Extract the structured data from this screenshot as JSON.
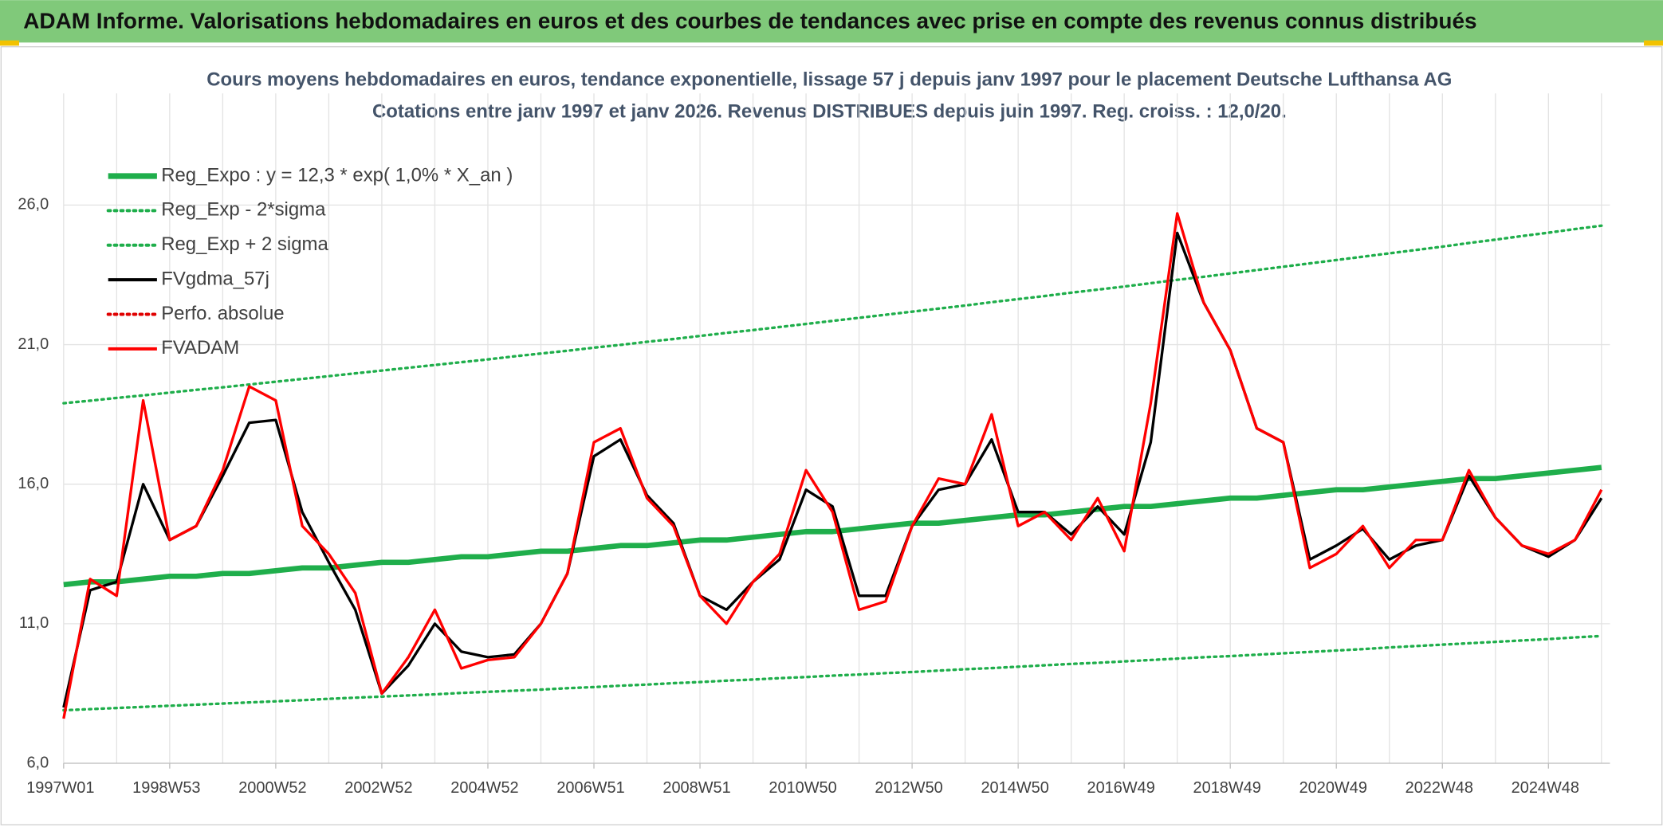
{
  "header": {
    "title": "ADAM Informe. Valorisations hebdomadaires en euros et des courbes de tendances avec prise en compte des revenus connus distribués"
  },
  "chart_data": {
    "type": "line",
    "title": "Cours moyens hebdomadaires en euros, tendance exponentielle, lissage 57 j depuis janv 1997 pour le placement Deutsche Lufthansa AG",
    "subtitle": "Cotations entre janv 1997 et janv 2026. Revenus DISTRIBUES depuis juin 1997. Reg. croiss. : 12,0/20.",
    "categories": [
      "1997W01",
      null,
      null,
      null,
      "1998W53",
      null,
      null,
      null,
      "2000W52",
      null,
      null,
      null,
      "2002W52",
      null,
      null,
      null,
      "2004W52",
      null,
      null,
      null,
      "2006W51",
      null,
      null,
      null,
      "2008W51",
      null,
      null,
      null,
      "2010W50",
      null,
      null,
      null,
      "2012W50",
      null,
      null,
      null,
      "2014W50",
      null,
      null,
      null,
      "2016W49",
      null,
      null,
      null,
      "2018W49",
      null,
      null,
      null,
      "2020W49",
      null,
      null,
      null,
      "2022W48",
      null,
      null,
      null,
      "2024W48",
      null,
      null
    ],
    "ylim": [
      6,
      30
    ],
    "yticks": [
      {
        "value": 6,
        "label": "6,0"
      },
      {
        "value": 11,
        "label": "11,0"
      },
      {
        "value": 16,
        "label": "16,0"
      },
      {
        "value": 21,
        "label": "21,0"
      },
      {
        "value": 26,
        "label": "26,0"
      }
    ],
    "grid": true,
    "legend": "upper-left",
    "series": [
      {
        "name": "Reg_Expo : y = 12,3 * exp( 1,0% *  X_an )",
        "color": "#1fae4b",
        "style": "thick",
        "values": [
          12.4,
          12.5,
          12.5,
          12.6,
          12.7,
          12.7,
          12.8,
          12.8,
          12.9,
          13.0,
          13.0,
          13.1,
          13.2,
          13.2,
          13.3,
          13.4,
          13.4,
          13.5,
          13.6,
          13.6,
          13.7,
          13.8,
          13.8,
          13.9,
          14.0,
          14.0,
          14.1,
          14.2,
          14.3,
          14.3,
          14.4,
          14.5,
          14.6,
          14.6,
          14.7,
          14.8,
          14.9,
          14.9,
          15.0,
          15.1,
          15.2,
          15.2,
          15.3,
          15.4,
          15.5,
          15.5,
          15.6,
          15.7,
          15.8,
          15.8,
          15.9,
          16.0,
          16.1,
          16.2,
          16.2,
          16.3,
          16.4,
          16.5,
          16.6
        ]
      },
      {
        "name": "Reg_Exp - 2*sigma",
        "color": "#1fae4b",
        "style": "dotted",
        "values": [
          7.9,
          7.94,
          7.98,
          8.02,
          8.06,
          8.1,
          8.14,
          8.18,
          8.22,
          8.26,
          8.31,
          8.35,
          8.39,
          8.43,
          8.47,
          8.52,
          8.56,
          8.6,
          8.64,
          8.69,
          8.73,
          8.78,
          8.82,
          8.87,
          8.91,
          8.96,
          9.0,
          9.05,
          9.09,
          9.14,
          9.18,
          9.23,
          9.27,
          9.32,
          9.37,
          9.41,
          9.46,
          9.51,
          9.56,
          9.6,
          9.65,
          9.7,
          9.75,
          9.8,
          9.84,
          9.89,
          9.94,
          9.99,
          10.04,
          10.09,
          10.15,
          10.2,
          10.25,
          10.3,
          10.35,
          10.4,
          10.45,
          10.51,
          10.56
        ]
      },
      {
        "name": "Reg_Exp + 2 sigma",
        "color": "#1fae4b",
        "style": "dotted",
        "values": [
          18.9,
          18.99,
          19.09,
          19.18,
          19.28,
          19.38,
          19.47,
          19.57,
          19.67,
          19.77,
          19.87,
          19.97,
          20.07,
          20.17,
          20.27,
          20.37,
          20.47,
          20.58,
          20.68,
          20.78,
          20.89,
          20.99,
          21.1,
          21.2,
          21.31,
          21.42,
          21.52,
          21.63,
          21.74,
          21.85,
          21.96,
          22.07,
          22.18,
          22.29,
          22.4,
          22.52,
          22.63,
          22.74,
          22.86,
          22.97,
          23.08,
          23.2,
          23.32,
          23.43,
          23.55,
          23.67,
          23.79,
          23.91,
          24.03,
          24.15,
          24.27,
          24.39,
          24.51,
          24.64,
          24.76,
          24.89,
          25.01,
          25.14,
          25.26
        ]
      },
      {
        "name": "FVgdma_57j",
        "color": "#000000",
        "style": "solid",
        "values": [
          8.0,
          12.2,
          12.5,
          16.0,
          14.0,
          14.5,
          16.3,
          18.2,
          18.3,
          15.0,
          13.2,
          11.5,
          8.5,
          9.5,
          11.0,
          10.0,
          9.8,
          9.9,
          11.0,
          12.8,
          17.0,
          17.6,
          15.6,
          14.6,
          12.0,
          11.5,
          12.5,
          13.3,
          15.8,
          15.2,
          12.0,
          12.0,
          14.5,
          15.8,
          16.0,
          17.6,
          15.0,
          15.0,
          14.2,
          15.2,
          14.2,
          17.5,
          25.0,
          22.5,
          20.8,
          18.0,
          17.5,
          13.3,
          13.8,
          14.4,
          13.3,
          13.8,
          14.0,
          16.3,
          14.8,
          13.8,
          13.4,
          14.0,
          15.5
        ]
      },
      {
        "name": "Perfo. absolue",
        "color": "#e00000",
        "style": "dotted",
        "values": [
          null,
          null,
          null,
          null,
          null,
          null,
          null,
          null,
          null,
          null,
          null,
          null,
          null,
          null,
          null,
          null,
          null,
          null,
          null,
          null,
          null,
          null,
          null,
          null,
          null,
          null,
          null,
          null,
          null,
          null,
          null,
          null,
          null,
          null,
          null,
          null,
          null,
          null,
          null,
          null,
          null,
          null,
          null,
          null,
          null,
          null,
          null,
          null,
          null,
          null,
          null,
          null,
          null,
          null,
          null,
          null,
          null,
          null,
          null
        ]
      },
      {
        "name": "FVADAM",
        "color": "#ff0000",
        "style": "solid",
        "values": [
          7.6,
          12.6,
          12.0,
          19.0,
          14.0,
          14.5,
          16.5,
          19.5,
          19.0,
          14.5,
          13.5,
          12.1,
          8.5,
          9.8,
          11.5,
          9.4,
          9.7,
          9.8,
          11.0,
          12.8,
          17.5,
          18.0,
          15.5,
          14.5,
          12.0,
          11.0,
          12.5,
          13.5,
          16.5,
          15.0,
          11.5,
          11.8,
          14.5,
          16.2,
          16.0,
          18.5,
          14.5,
          15.0,
          14.0,
          15.5,
          13.6,
          18.9,
          25.7,
          22.5,
          20.8,
          18.0,
          17.5,
          13.0,
          13.5,
          14.5,
          13.0,
          14.0,
          14.0,
          16.5,
          14.8,
          13.8,
          13.5,
          14.0,
          15.8
        ]
      }
    ]
  }
}
